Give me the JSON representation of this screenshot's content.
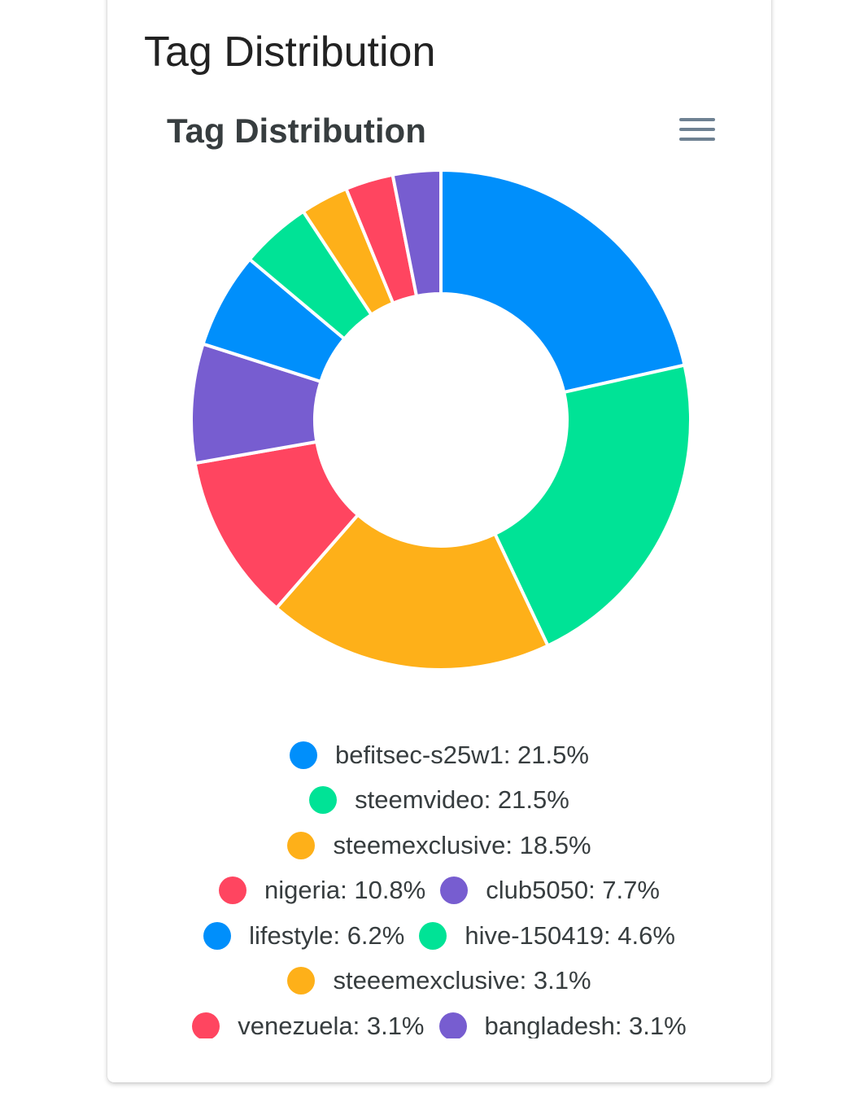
{
  "card": {
    "title": "Tag Distribution"
  },
  "chart_data": {
    "type": "pie",
    "variant": "donut",
    "title": "Tag Distribution",
    "labels": [
      "befitsec-s25w1",
      "steemvideo",
      "steemexclusive",
      "nigeria",
      "club5050",
      "lifestyle",
      "hive-150419",
      "steeemexclusive",
      "venezuela",
      "bangladesh"
    ],
    "values": [
      21.5,
      21.5,
      18.5,
      10.8,
      7.7,
      6.2,
      4.6,
      3.1,
      3.1,
      3.1
    ],
    "colors": [
      "#008ffb",
      "#00e396",
      "#feb019",
      "#ff4560",
      "#775dd0",
      "#008ffb",
      "#00e396",
      "#feb019",
      "#ff4560",
      "#775dd0"
    ],
    "legend": {
      "position": "bottom",
      "entries": [
        "befitsec-s25w1: 21.5%",
        "steemvideo: 21.5%",
        "steemexclusive: 18.5%",
        "nigeria: 10.8%",
        "club5050: 7.7%",
        "lifestyle: 6.2%",
        "hive-150419: 4.6%",
        "steeemexclusive: 3.1%",
        "venezuela: 3.1%",
        "bangladesh: 3.1%"
      ]
    }
  },
  "toolbar": {
    "menu_icon": "hamburger-menu-icon"
  }
}
